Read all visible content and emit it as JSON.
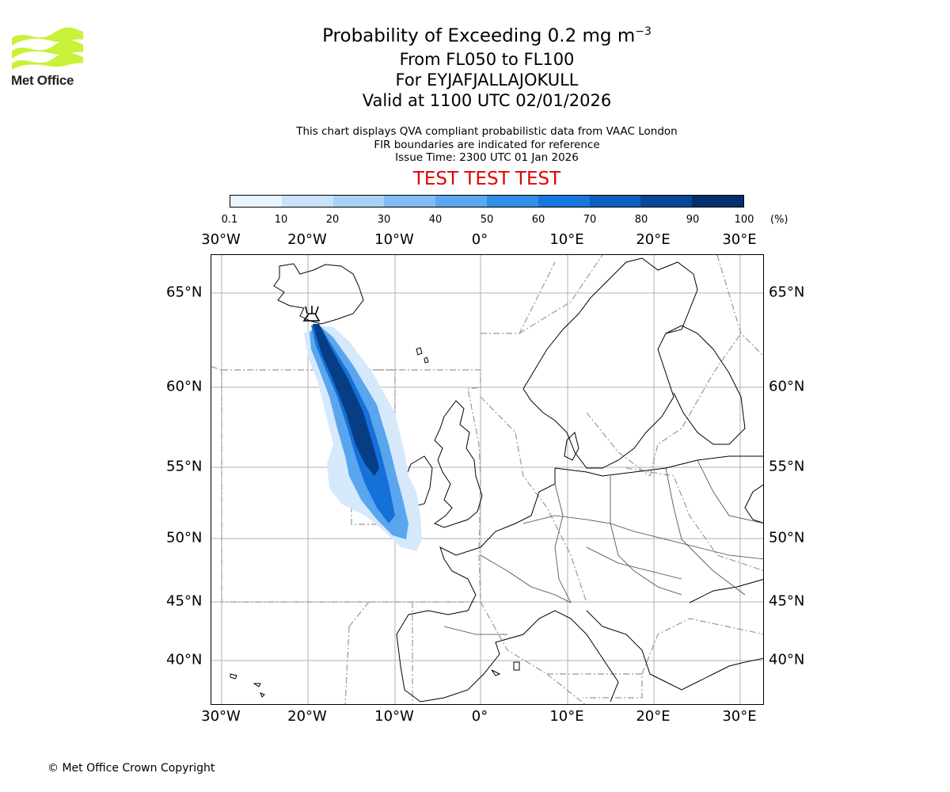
{
  "logo": {
    "text": "Met Office",
    "color": "#c8f23a"
  },
  "title": {
    "main": "Probability of Exceeding 0.2 mg m",
    "main_superscript": "−3",
    "levels": "From FL050 to FL100",
    "volcano": "For EYJAFJALLAJOKULL",
    "valid": "Valid at 1100 UTC 02/01/2026"
  },
  "description": {
    "line1": "This chart displays QVA compliant probabilistic data from VAAC London",
    "line2": "FIR boundaries are indicated for reference",
    "line3": "Issue Time: 2300 UTC 01 Jan 2026"
  },
  "banner": {
    "text": "TEST TEST TEST",
    "color": "#e00000"
  },
  "colorbar": {
    "ticks": [
      "0.1",
      "10",
      "20",
      "30",
      "40",
      "50",
      "60",
      "70",
      "80",
      "90",
      "100"
    ],
    "unit": "(%)",
    "colors": [
      "#eaf4fe",
      "#c9e2fb",
      "#a9d1f7",
      "#82bcf4",
      "#5ca8f0",
      "#2f90ea",
      "#1677dc",
      "#0d5fc0",
      "#07479a",
      "#032f6e"
    ]
  },
  "map": {
    "lon_labels": [
      "30°W",
      "20°W",
      "10°W",
      "0°",
      "10°E",
      "20°E",
      "30°E"
    ],
    "lat_labels": [
      "65°N",
      "60°N",
      "55°N",
      "50°N",
      "45°N",
      "40°N"
    ],
    "plume_colors": {
      "light": "#d6e9fb",
      "mid": "#5aa6ee",
      "strong": "#1570d8",
      "core": "#063e86"
    },
    "volcano_icon": "volcano-icon"
  },
  "copyright": "© Met Office Crown Copyright"
}
